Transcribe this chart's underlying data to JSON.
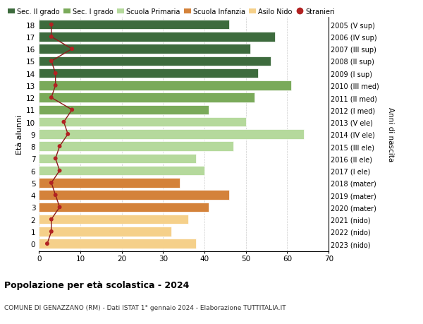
{
  "ages": [
    18,
    17,
    16,
    15,
    14,
    13,
    12,
    11,
    10,
    9,
    8,
    7,
    6,
    5,
    4,
    3,
    2,
    1,
    0
  ],
  "years": [
    "2005 (V sup)",
    "2006 (IV sup)",
    "2007 (III sup)",
    "2008 (II sup)",
    "2009 (I sup)",
    "2010 (III med)",
    "2011 (II med)",
    "2012 (I med)",
    "2013 (V ele)",
    "2014 (IV ele)",
    "2015 (III ele)",
    "2016 (II ele)",
    "2017 (I ele)",
    "2018 (mater)",
    "2019 (mater)",
    "2020 (mater)",
    "2021 (nido)",
    "2022 (nido)",
    "2023 (nido)"
  ],
  "bar_values": [
    46,
    57,
    51,
    56,
    53,
    61,
    52,
    41,
    50,
    64,
    47,
    38,
    40,
    34,
    46,
    41,
    36,
    32,
    38
  ],
  "bar_colors": [
    "#3d6b3d",
    "#3d6b3d",
    "#3d6b3d",
    "#3d6b3d",
    "#3d6b3d",
    "#7aaa5a",
    "#7aaa5a",
    "#7aaa5a",
    "#b5d99c",
    "#b5d99c",
    "#b5d99c",
    "#b5d99c",
    "#b5d99c",
    "#d4823a",
    "#d4823a",
    "#d4823a",
    "#f5d08a",
    "#f5d08a",
    "#f5d08a"
  ],
  "stranieri_values": [
    3,
    3,
    8,
    3,
    4,
    4,
    3,
    8,
    6,
    7,
    5,
    4,
    5,
    3,
    4,
    5,
    3,
    3,
    2
  ],
  "title_bold": "Popolazione per età scolastica - 2024",
  "subtitle": "COMUNE DI GENAZZANO (RM) - Dati ISTAT 1° gennaio 2024 - Elaborazione TUTTITALIA.IT",
  "ylabel": "Età alunni",
  "right_label": "Anni di nascita",
  "xlabel_vals": [
    0,
    10,
    20,
    30,
    40,
    50,
    60,
    70
  ],
  "xlim": [
    0,
    70
  ],
  "legend_labels": [
    "Sec. II grado",
    "Sec. I grado",
    "Scuola Primaria",
    "Scuola Infanzia",
    "Asilo Nido",
    "Stranieri"
  ],
  "legend_colors": [
    "#3d6b3d",
    "#7aaa5a",
    "#b5d99c",
    "#d4823a",
    "#f5d08a",
    "#b22222"
  ],
  "bg_color": "#ffffff",
  "bar_height": 0.78,
  "stranieri_color": "#b22222",
  "stranieri_line_color": "#8b1a1a",
  "grid_color": "#cccccc"
}
